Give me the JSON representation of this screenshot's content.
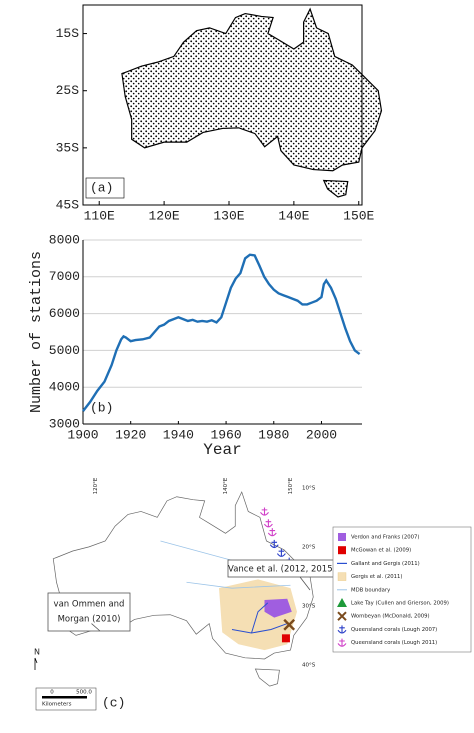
{
  "chart_data": [
    {
      "type": "map",
      "label": "(a)",
      "xlim": [
        107.5,
        150.5
      ],
      "ylim": [
        -45,
        -10
      ],
      "xticks": [
        {
          "value": 110,
          "label": "110E"
        },
        {
          "value": 120,
          "label": "120E"
        },
        {
          "value": 130,
          "label": "130E"
        },
        {
          "value": 140,
          "label": "140E"
        },
        {
          "value": 150,
          "label": "150E"
        }
      ],
      "yticks": [
        {
          "value": -15,
          "label": "15S"
        },
        {
          "value": -25,
          "label": "25S"
        },
        {
          "value": -35,
          "label": "35S"
        },
        {
          "value": -45,
          "label": "45S"
        }
      ]
    },
    {
      "type": "line",
      "label": "(b)",
      "xlabel": "Year",
      "ylabel": "Number of stations",
      "xlim": [
        1900,
        2017
      ],
      "ylim": [
        3000,
        8000
      ],
      "xticks": [
        1900,
        1920,
        1940,
        1960,
        1980,
        2000
      ],
      "yticks": [
        3000,
        4000,
        5000,
        6000,
        7000,
        8000
      ],
      "grid": true,
      "series": [
        {
          "color": "#1f6fb5",
          "x": [
            1900,
            1903,
            1906,
            1909,
            1912,
            1914,
            1916,
            1917,
            1918,
            1920,
            1922,
            1925,
            1928,
            1930,
            1932,
            1934,
            1936,
            1938,
            1940,
            1942,
            1944,
            1946,
            1948,
            1950,
            1952,
            1954,
            1956,
            1958,
            1960,
            1962,
            1964,
            1966,
            1968,
            1970,
            1972,
            1974,
            1976,
            1978,
            1980,
            1982,
            1984,
            1986,
            1988,
            1990,
            1992,
            1994,
            1996,
            1998,
            2000,
            2001,
            2002,
            2004,
            2006,
            2008,
            2010,
            2012,
            2014,
            2016
          ],
          "values": [
            3350,
            3600,
            3900,
            4150,
            4600,
            5000,
            5300,
            5380,
            5350,
            5250,
            5280,
            5300,
            5350,
            5500,
            5650,
            5700,
            5800,
            5850,
            5900,
            5850,
            5800,
            5830,
            5780,
            5800,
            5780,
            5820,
            5760,
            5900,
            6300,
            6700,
            6950,
            7100,
            7500,
            7600,
            7580,
            7300,
            7000,
            6800,
            6650,
            6550,
            6500,
            6450,
            6400,
            6350,
            6250,
            6250,
            6300,
            6350,
            6450,
            6800,
            6900,
            6700,
            6400,
            6000,
            5600,
            5250,
            5000,
            4900
          ]
        }
      ]
    }
  ],
  "map_c": {
    "label": "(c)",
    "lat_labels": [
      "10°S",
      "20°S",
      "30°S",
      "40°S"
    ],
    "lon_labels": [
      "120°E",
      "140°E",
      "150°E"
    ],
    "north": "N",
    "scale": [
      "0",
      "500.0",
      "Kilometers"
    ],
    "callouts": [
      [
        "Vance et al. (2012, 2015)"
      ],
      [
        "van Ommen and",
        "Morgan (2010)"
      ]
    ],
    "legend": [
      "Verdon and Franks (2007)",
      "McGowan et al. (2009)",
      "Gallant and Gergis (2011)",
      "Gergis et al. (2011)",
      "MDB boundary",
      "Lake Tay (Cullen and Grierson, 2009)",
      "Wombeyan (McDonald, 2009)",
      "Queensland corals (Lough 2007)",
      "Queensland corals (Lough 2011)"
    ]
  }
}
